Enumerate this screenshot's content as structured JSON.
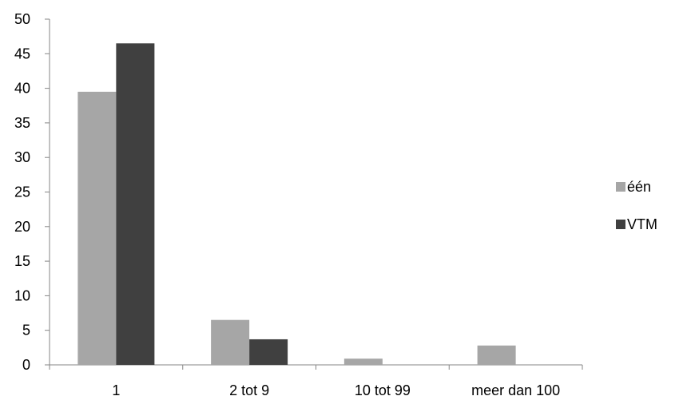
{
  "chart_data": {
    "type": "bar",
    "categories": [
      "1",
      "2 tot 9",
      "10 tot 99",
      "meer dan 100"
    ],
    "series": [
      {
        "name": "één",
        "values": [
          39.5,
          6.5,
          0.9,
          2.8
        ],
        "color": "#a6a6a6"
      },
      {
        "name": "VTM",
        "values": [
          46.5,
          3.7,
          0,
          0
        ],
        "color": "#404040"
      }
    ],
    "ylim": [
      0,
      50
    ],
    "yticks": [
      0,
      5,
      10,
      15,
      20,
      25,
      30,
      35,
      40,
      45,
      50
    ],
    "grid": false,
    "legend_position": "right"
  }
}
